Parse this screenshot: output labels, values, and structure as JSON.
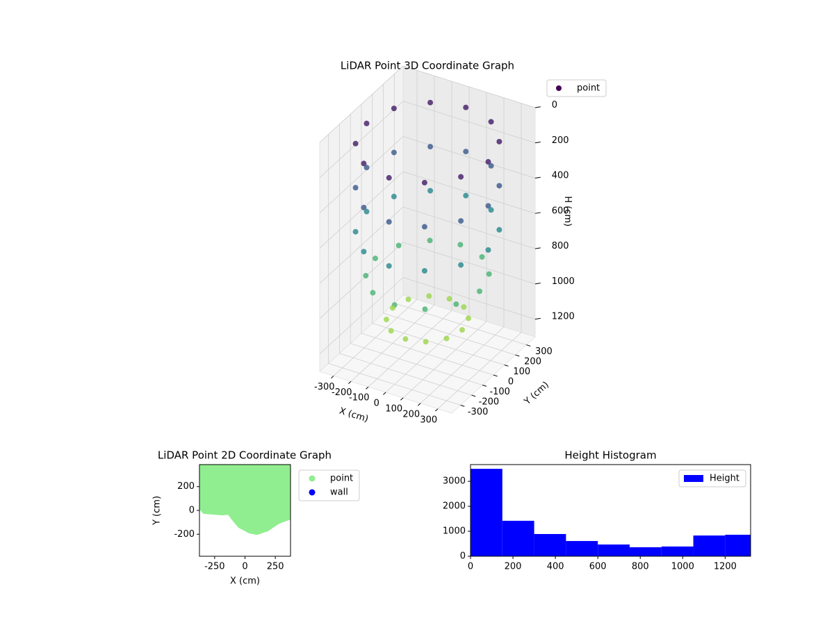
{
  "chart_data": [
    {
      "type": "scatter3d",
      "title": "LiDAR Point 3D Coordinate Graph",
      "xlabel": "X (cm)",
      "ylabel": "Y (cm)",
      "zlabel": "H (cm)",
      "xlim": [
        -380,
        380
      ],
      "ylim": [
        -380,
        380
      ],
      "zlim": [
        1300,
        0
      ],
      "xticks": [
        -300,
        -200,
        -100,
        0,
        100,
        200,
        300
      ],
      "yticks": [
        -300,
        -200,
        -100,
        0,
        100,
        200,
        300
      ],
      "zticks": [
        0,
        200,
        400,
        600,
        800,
        1000,
        1200
      ],
      "grid": true,
      "legend": "upper right",
      "series": [
        {
          "name": "point",
          "color": "#440154",
          "cmap": "viridis",
          "x": [
            350,
            303,
            175,
            0,
            -175,
            -303,
            -350,
            -303,
            -175,
            0,
            175,
            303,
            350,
            303,
            175,
            0,
            -175,
            -303,
            -350,
            -303,
            -175,
            0,
            175,
            303,
            350,
            303,
            175,
            0,
            -175,
            -303,
            -350,
            -303,
            -175,
            0,
            175,
            303,
            300,
            260,
            150,
            0,
            -150,
            -260,
            -300,
            -260,
            -150,
            0,
            150,
            260,
            200,
            173,
            100,
            0,
            -100,
            -173,
            -200,
            -173,
            -100,
            0,
            100,
            173
          ],
          "y": [
            0,
            175,
            303,
            350,
            303,
            175,
            0,
            -175,
            -303,
            -350,
            -303,
            -175,
            0,
            175,
            303,
            350,
            303,
            175,
            0,
            -175,
            -303,
            -350,
            -303,
            -175,
            0,
            175,
            303,
            350,
            303,
            175,
            0,
            -175,
            -303,
            -350,
            -303,
            -175,
            0,
            150,
            260,
            300,
            260,
            150,
            0,
            -150,
            -260,
            -300,
            -260,
            -150,
            0,
            100,
            173,
            200,
            173,
            100,
            0,
            -100,
            -173,
            -200,
            -173,
            -100
          ],
          "z": [
            100,
            100,
            100,
            100,
            100,
            100,
            100,
            100,
            100,
            100,
            100,
            100,
            350,
            350,
            350,
            350,
            350,
            350,
            350,
            350,
            350,
            350,
            350,
            350,
            600,
            600,
            600,
            600,
            600,
            600,
            600,
            600,
            600,
            600,
            600,
            600,
            850,
            850,
            850,
            850,
            850,
            850,
            850,
            850,
            850,
            850,
            850,
            850,
            1100,
            1100,
            1100,
            1100,
            1100,
            1100,
            1100,
            1100,
            1100,
            1100,
            1100,
            1100
          ]
        }
      ]
    },
    {
      "type": "scatter",
      "title": "LiDAR Point 2D Coordinate Graph",
      "xlabel": "X (cm)",
      "ylabel": "Y (cm)",
      "xlim": [
        -375,
        375
      ],
      "ylim": [
        -385,
        385
      ],
      "xticks": [
        -250,
        0,
        250
      ],
      "yticks": [
        -200,
        0,
        200
      ],
      "legend": "outside right",
      "series": [
        {
          "name": "point",
          "color": "#90ee90",
          "fill_region": true,
          "x": [
            -375,
            -375,
            -360,
            -335,
            -188,
            -130,
            -102,
            -45,
            40,
            97,
            182,
            267,
            324,
            375,
            375
          ],
          "y": [
            385,
            88,
            18,
            -12,
            -24,
            -18,
            -59,
            -130,
            -176,
            -188,
            -159,
            -100,
            -76,
            -59,
            385
          ]
        },
        {
          "name": "wall",
          "color": "#0000ff",
          "x": [],
          "y": []
        }
      ]
    },
    {
      "type": "histogram",
      "title": "Height Histogram",
      "bins": [
        0,
        150,
        300,
        450,
        600,
        750,
        900,
        1050,
        1200,
        1350
      ],
      "counts": [
        3500,
        1420,
        890,
        610,
        470,
        360,
        390,
        830,
        860
      ],
      "xlim": [
        0,
        1320
      ],
      "ylim": [
        0,
        3670
      ],
      "xticks": [
        0,
        200,
        400,
        600,
        800,
        1000,
        1200
      ],
      "yticks": [
        0,
        1000,
        2000,
        3000
      ],
      "legend": "upper right",
      "series": [
        {
          "name": "Height",
          "color": "#0000ff"
        }
      ]
    }
  ]
}
